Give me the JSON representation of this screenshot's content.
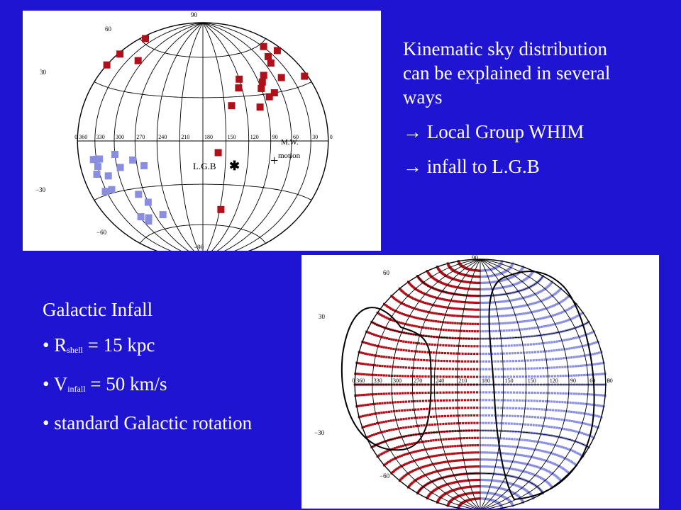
{
  "text_block": {
    "line1": "Kinematic sky distribution",
    "line2": "can be explained in several",
    "line3": "ways",
    "bullet1_symbol": "→",
    "bullet1_text": "Local Group WHIM",
    "bullet2_symbol": "→",
    "bullet2_text": "infall to L.G.B"
  },
  "infall_block": {
    "title": "Galactic Infall",
    "bullet_char": "•",
    "r_symbol": "R",
    "r_sub": "shell",
    "r_value": "= 15 kpc",
    "v_symbol": "V",
    "v_sub": "infall",
    "v_value": "= 50 km/s",
    "rotation": "standard Galactic rotation"
  },
  "top_map": {
    "lat_labels": {
      "p90": "90",
      "p60": "60",
      "p30": "30",
      "m30": "−30",
      "m60": "−60",
      "m90": "−90"
    },
    "lon_labels": [
      "0",
      "360",
      "330",
      "300",
      "270",
      "240",
      "210",
      "180",
      "150",
      "120",
      "90",
      "60",
      "30",
      "0"
    ],
    "lgb_label": "L.G.B",
    "mw_label_1": "M.W.",
    "mw_label_2": "motion",
    "lgb_marker": "✱",
    "mw_marker": "+",
    "colors": {
      "red": "#b0101a",
      "blue": "#8a8ee0"
    }
  },
  "bottom_map": {
    "lat_labels": {
      "p90": "90",
      "p60": "60",
      "p30": "30",
      "m30": "−30",
      "m60": "−60"
    },
    "lon_labels": [
      "0",
      "360",
      "330",
      "300",
      "270",
      "240",
      "210",
      "180",
      "150",
      "150",
      "120",
      "90",
      "60",
      "30",
      "0"
    ],
    "colors": {
      "red": "#b0101a",
      "blue": "#8a8ee0"
    }
  }
}
